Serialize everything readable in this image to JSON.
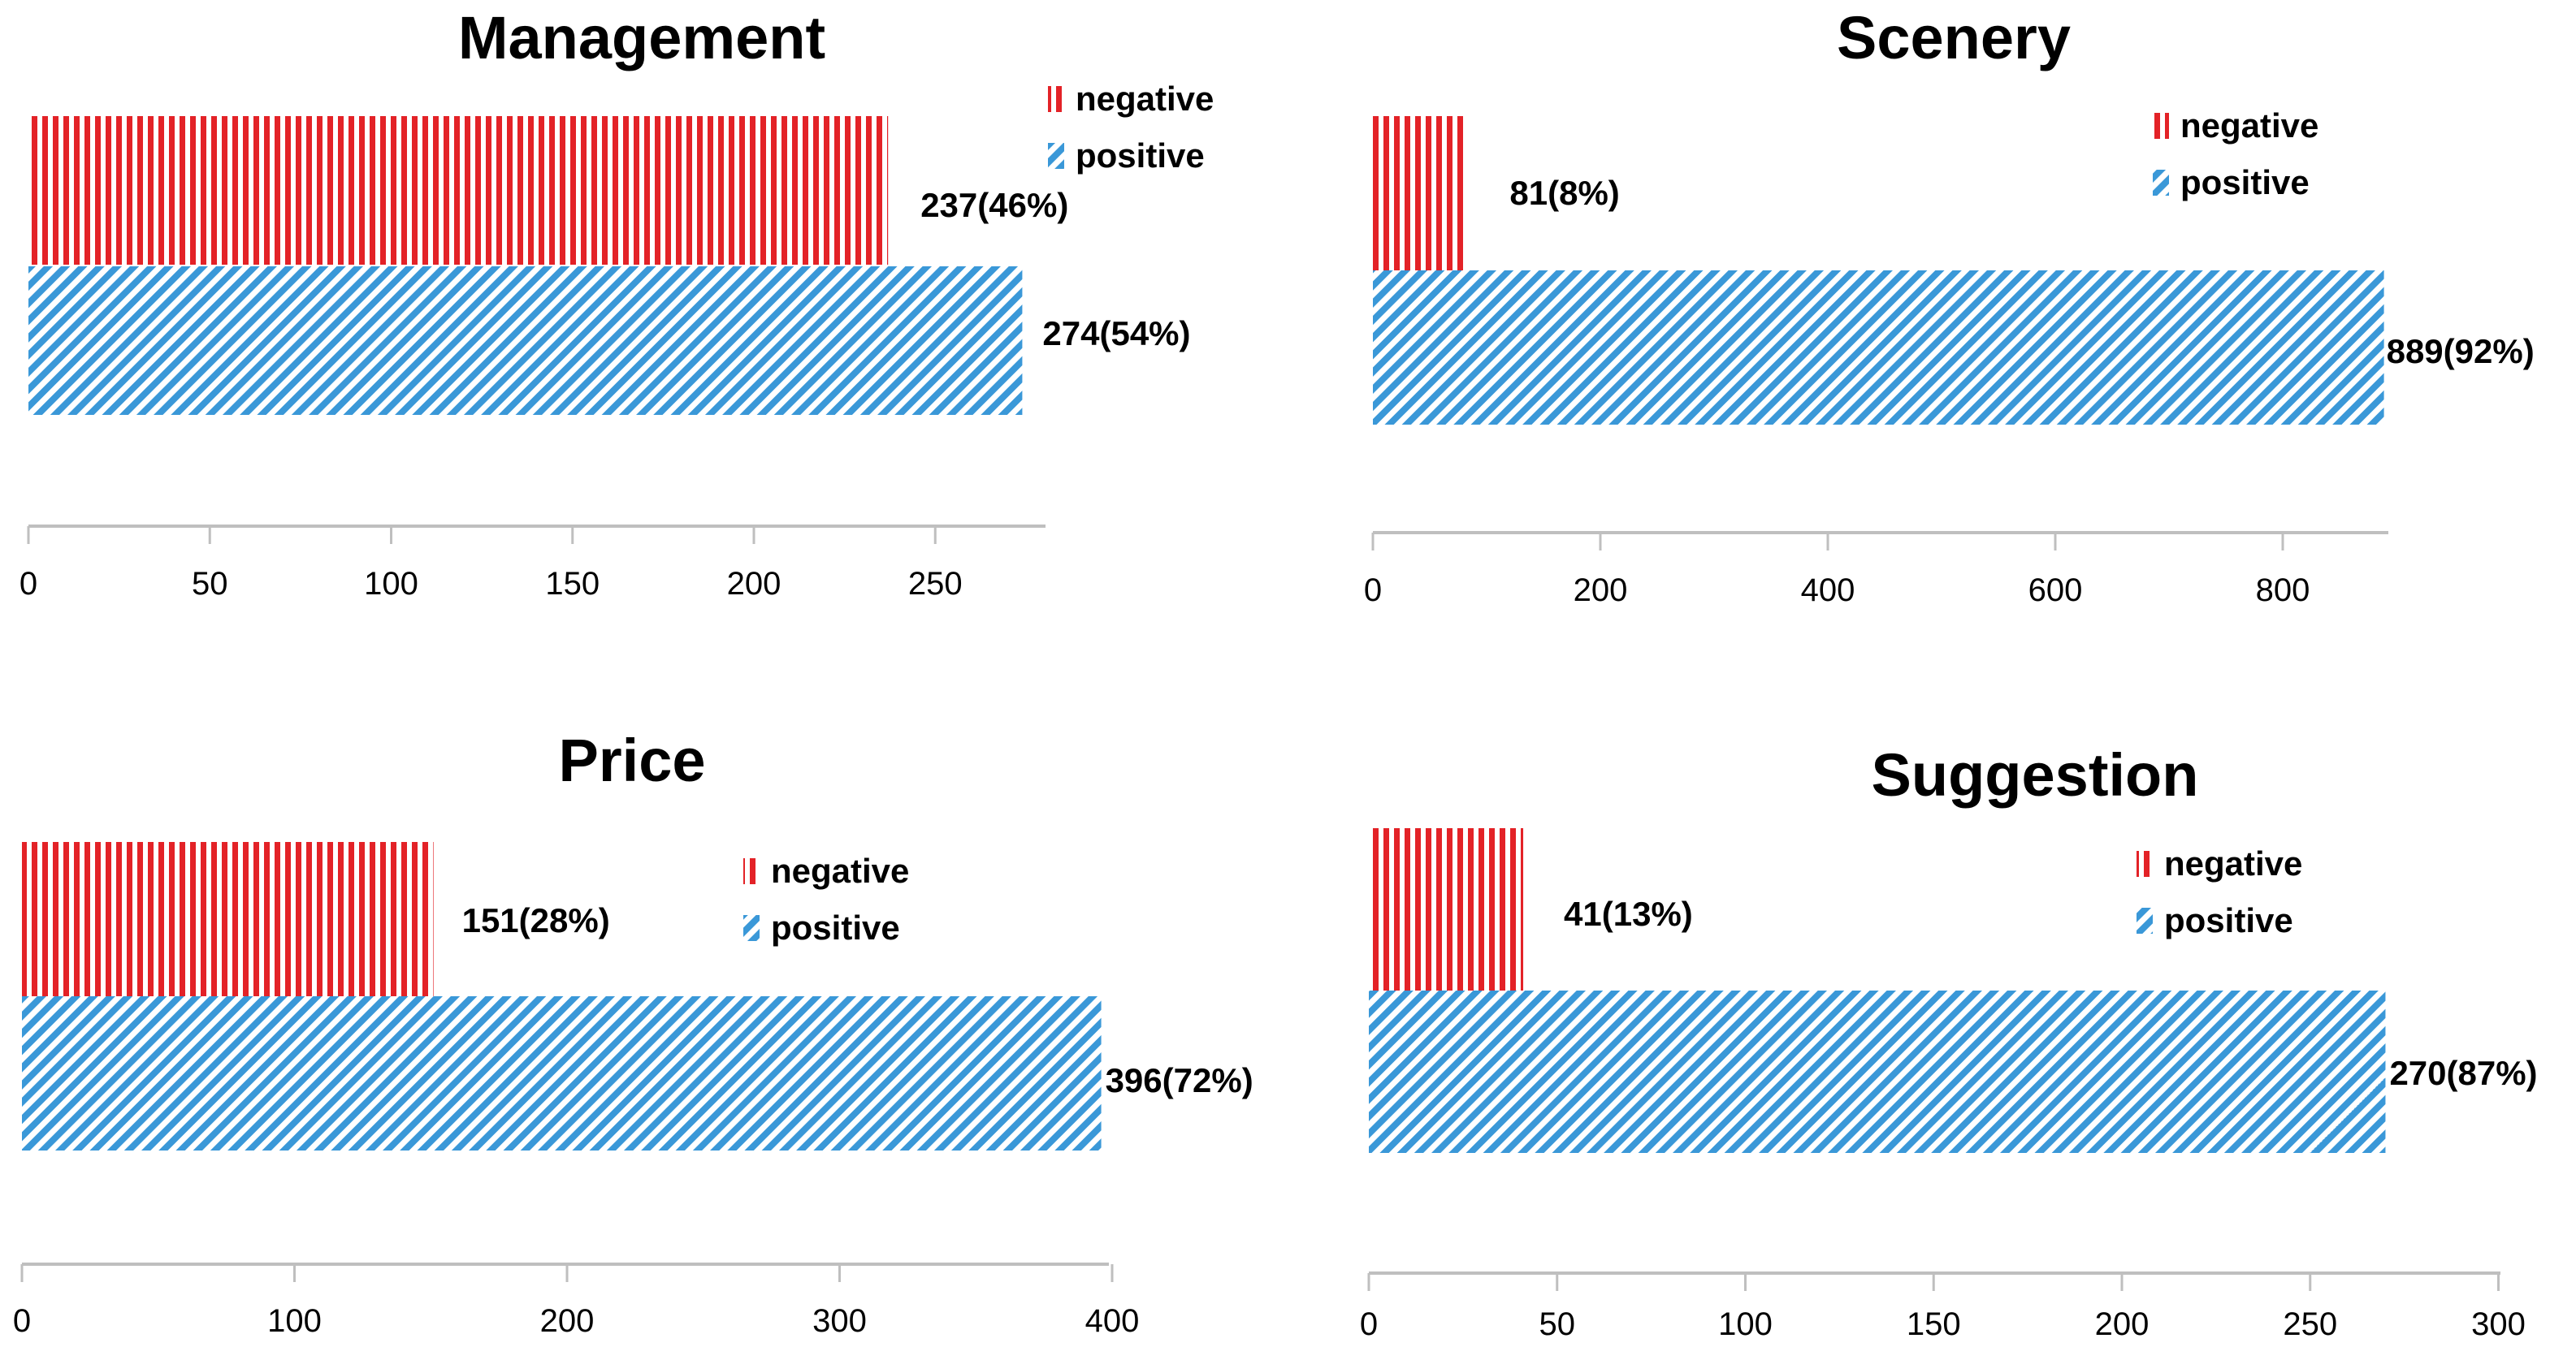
{
  "colors": {
    "negative": "#e32227",
    "positive": "#3a98d8",
    "axis": "#bfbfbf"
  },
  "chart_data": [
    {
      "type": "bar",
      "orientation": "horizontal",
      "title": "Management",
      "categories": [
        "negative",
        "positive"
      ],
      "values": [
        237,
        274
      ],
      "labels": [
        "237(46%)",
        "274(54%)"
      ],
      "xlim": [
        0,
        280
      ],
      "ticks": [
        0,
        50,
        100,
        150,
        200,
        250
      ],
      "legend": [
        "negative",
        "positive"
      ],
      "legend_position": "top-right"
    },
    {
      "type": "bar",
      "orientation": "horizontal",
      "title": "Scenery",
      "categories": [
        "negative",
        "positive"
      ],
      "values": [
        81,
        889
      ],
      "labels": [
        "81(8%)",
        "889(92%)"
      ],
      "xlim": [
        0,
        900
      ],
      "ticks": [
        0,
        200,
        400,
        600,
        800
      ],
      "legend": [
        "negative",
        "positive"
      ],
      "legend_position": "top-right"
    },
    {
      "type": "bar",
      "orientation": "horizontal",
      "title": "Price",
      "categories": [
        "negative",
        "positive"
      ],
      "values": [
        151,
        396
      ],
      "labels": [
        "151(28%)",
        "396(72%)"
      ],
      "xlim": [
        0,
        400
      ],
      "ticks": [
        0,
        100,
        200,
        300,
        400
      ],
      "legend": [
        "negative",
        "positive"
      ],
      "legend_position": "top-right"
    },
    {
      "type": "bar",
      "orientation": "horizontal",
      "title": "Suggestion",
      "categories": [
        "negative",
        "positive"
      ],
      "values": [
        41,
        270
      ],
      "labels": [
        "41(13%)",
        "270(87%)"
      ],
      "xlim": [
        0,
        300
      ],
      "ticks": [
        0,
        50,
        100,
        150,
        200,
        250,
        300
      ],
      "legend": [
        "negative",
        "positive"
      ],
      "legend_position": "top-right"
    }
  ]
}
